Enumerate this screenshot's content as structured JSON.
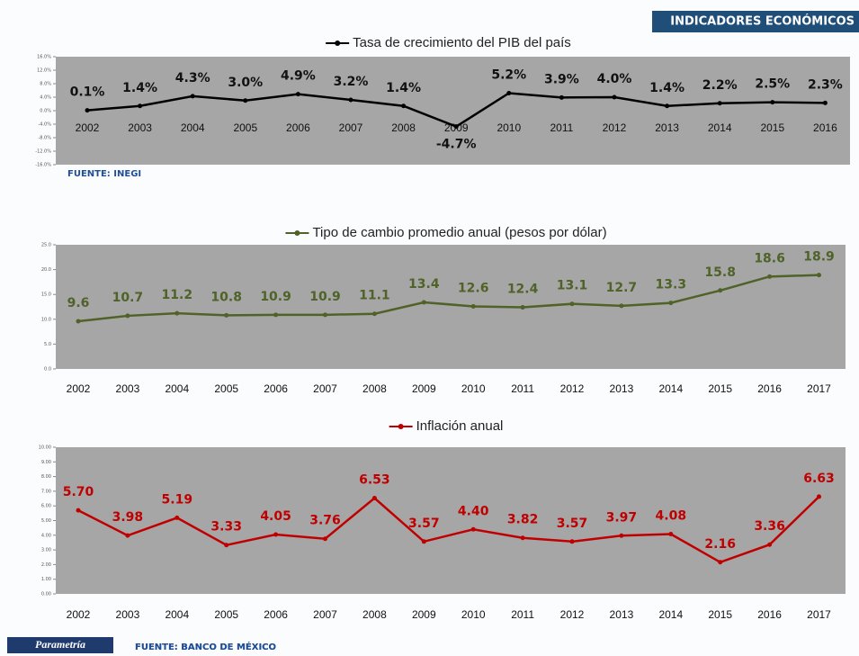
{
  "header": "INDICADORES ECONÓMICOS",
  "logo": "Parametría",
  "chart_data": [
    {
      "type": "line",
      "title": "Tasa de crecimiento del PIB del país",
      "source": "FUENTE: INEGI",
      "categories": [
        "2002",
        "2003",
        "2004",
        "2005",
        "2006",
        "2007",
        "2008",
        "2009",
        "2010",
        "2011",
        "2012",
        "2013",
        "2014",
        "2015",
        "2016"
      ],
      "series": [
        {
          "name": "Tasa de crecimiento del PIB del país",
          "color": "#000000",
          "values": [
            0.1,
            1.4,
            4.3,
            3.0,
            4.9,
            3.2,
            1.4,
            -4.7,
            5.2,
            3.9,
            4.0,
            1.4,
            2.2,
            2.5,
            2.3
          ],
          "value_labels": [
            "0.1%",
            "1.4%",
            "4.3%",
            "3.0%",
            "4.9%",
            "3.2%",
            "1.4%",
            "-4.7%",
            "5.2%",
            "3.9%",
            "4.0%",
            "1.4%",
            "2.2%",
            "2.5%",
            "2.3%"
          ]
        }
      ],
      "ylim": [
        -16,
        16
      ],
      "yticks": [
        {
          "value": -16,
          "label": "-16.0%"
        },
        {
          "value": -12,
          "label": "-12.0%"
        },
        {
          "value": -8,
          "label": "-8.0%"
        },
        {
          "value": -4,
          "label": "-4.0%"
        },
        {
          "value": 0,
          "label": "0.0%"
        },
        {
          "value": 4,
          "label": "4.0%"
        },
        {
          "value": 8,
          "label": "8.0%"
        },
        {
          "value": 12,
          "label": "12.0%"
        },
        {
          "value": 16,
          "label": "16.0%"
        }
      ]
    },
    {
      "type": "line",
      "title": "Tipo de cambio promedio anual (pesos por dólar)",
      "categories": [
        "2002",
        "2003",
        "2004",
        "2005",
        "2006",
        "2007",
        "2008",
        "2009",
        "2010",
        "2011",
        "2012",
        "2013",
        "2014",
        "2015",
        "2016",
        "2017"
      ],
      "series": [
        {
          "name": "Tipo de cambio promedio anual (pesos por dólar)",
          "color": "#4f6228",
          "values": [
            9.6,
            10.7,
            11.2,
            10.8,
            10.9,
            10.9,
            11.1,
            13.4,
            12.6,
            12.4,
            13.1,
            12.7,
            13.3,
            15.8,
            18.6,
            18.9
          ]
        }
      ],
      "ylim": [
        0,
        25
      ],
      "yticks": [
        {
          "value": 0,
          "label": "0.0"
        },
        {
          "value": 5,
          "label": "5.0"
        },
        {
          "value": 10,
          "label": "10.0"
        },
        {
          "value": 15,
          "label": "15.0"
        },
        {
          "value": 20,
          "label": "20.0"
        },
        {
          "value": 25,
          "label": "25.0"
        }
      ]
    },
    {
      "type": "line",
      "title": "Inflación anual",
      "source": "FUENTE: BANCO DE MÉXICO",
      "categories": [
        "2002",
        "2003",
        "2004",
        "2005",
        "2006",
        "2007",
        "2008",
        "2009",
        "2010",
        "2011",
        "2012",
        "2013",
        "2014",
        "2015",
        "2016",
        "2017"
      ],
      "series": [
        {
          "name": "Inflación anual",
          "color": "#c00000",
          "values": [
            5.7,
            3.98,
            5.19,
            3.33,
            4.05,
            3.76,
            6.53,
            3.57,
            4.4,
            3.82,
            3.57,
            3.97,
            4.08,
            2.16,
            3.36,
            6.63
          ],
          "value_labels": [
            "5.70",
            "3.98",
            "5.19",
            "3.33",
            "4.05",
            "3.76",
            "6.53",
            "3.57",
            "4.40",
            "3.82",
            "3.57",
            "3.97",
            "4.08",
            "2.16",
            "3.36",
            "6.63"
          ]
        }
      ],
      "ylim": [
        0,
        10
      ],
      "yticks": [
        {
          "value": 0,
          "label": "0.00"
        },
        {
          "value": 1,
          "label": "1.00"
        },
        {
          "value": 2,
          "label": "2.00"
        },
        {
          "value": 3,
          "label": "3.00"
        },
        {
          "value": 4,
          "label": "4.00"
        },
        {
          "value": 5,
          "label": "5.00"
        },
        {
          "value": 6,
          "label": "6.00"
        },
        {
          "value": 7,
          "label": "7.00"
        },
        {
          "value": 8,
          "label": "8.00"
        },
        {
          "value": 9,
          "label": "9.00"
        },
        {
          "value": 10,
          "label": "10.00"
        }
      ]
    }
  ],
  "sources": [
    "FUENTE: BANCO DE MÉXICO"
  ]
}
